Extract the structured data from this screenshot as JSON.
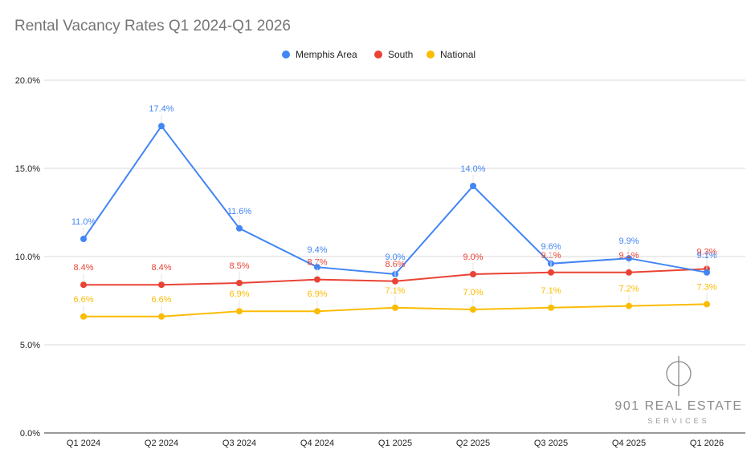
{
  "chart_data": {
    "type": "line",
    "title": "Rental Vacancy Rates Q1 2024-Q1 2026",
    "categories": [
      "Q1 2024",
      "Q2 2024",
      "Q3 2024",
      "Q4 2024",
      "Q1 2025",
      "Q2 2025",
      "Q3 2025",
      "Q4 2025",
      "Q1 2026"
    ],
    "y_ticks": [
      "0.0%",
      "5.0%",
      "10.0%",
      "15.0%",
      "20.0%"
    ],
    "ylim": [
      0,
      20
    ],
    "grid": true,
    "legend_position": "top-center",
    "series": [
      {
        "name": "Memphis Area",
        "color": "#4285F4",
        "values": [
          11.0,
          17.4,
          11.6,
          9.4,
          9.0,
          14.0,
          9.6,
          9.9,
          9.1
        ],
        "labels": [
          "11.0%",
          "17.4%",
          "11.6%",
          "9.4%",
          "9.0%",
          "14.0%",
          "9.6%",
          "9.9%",
          "9.1%"
        ]
      },
      {
        "name": "South",
        "color": "#EA4335",
        "values": [
          8.4,
          8.4,
          8.5,
          8.7,
          8.6,
          9.0,
          9.1,
          9.1,
          9.3
        ],
        "labels": [
          "8.4%",
          "8.4%",
          "8.5%",
          "8.7%",
          "8.6%",
          "9.0%",
          "9.1%",
          "9.1%",
          "9.3%"
        ]
      },
      {
        "name": "National",
        "color": "#FBBC04",
        "values": [
          6.6,
          6.6,
          6.9,
          6.9,
          7.1,
          7.0,
          7.1,
          7.2,
          7.3
        ],
        "labels": [
          "6.6%",
          "6.6%",
          "6.9%",
          "6.9%",
          "7.1%",
          "7.0%",
          "7.1%",
          "7.2%",
          "7.3%"
        ]
      }
    ]
  },
  "logo": {
    "line1": "901 REAL ESTATE",
    "line2": "SERVICES"
  }
}
